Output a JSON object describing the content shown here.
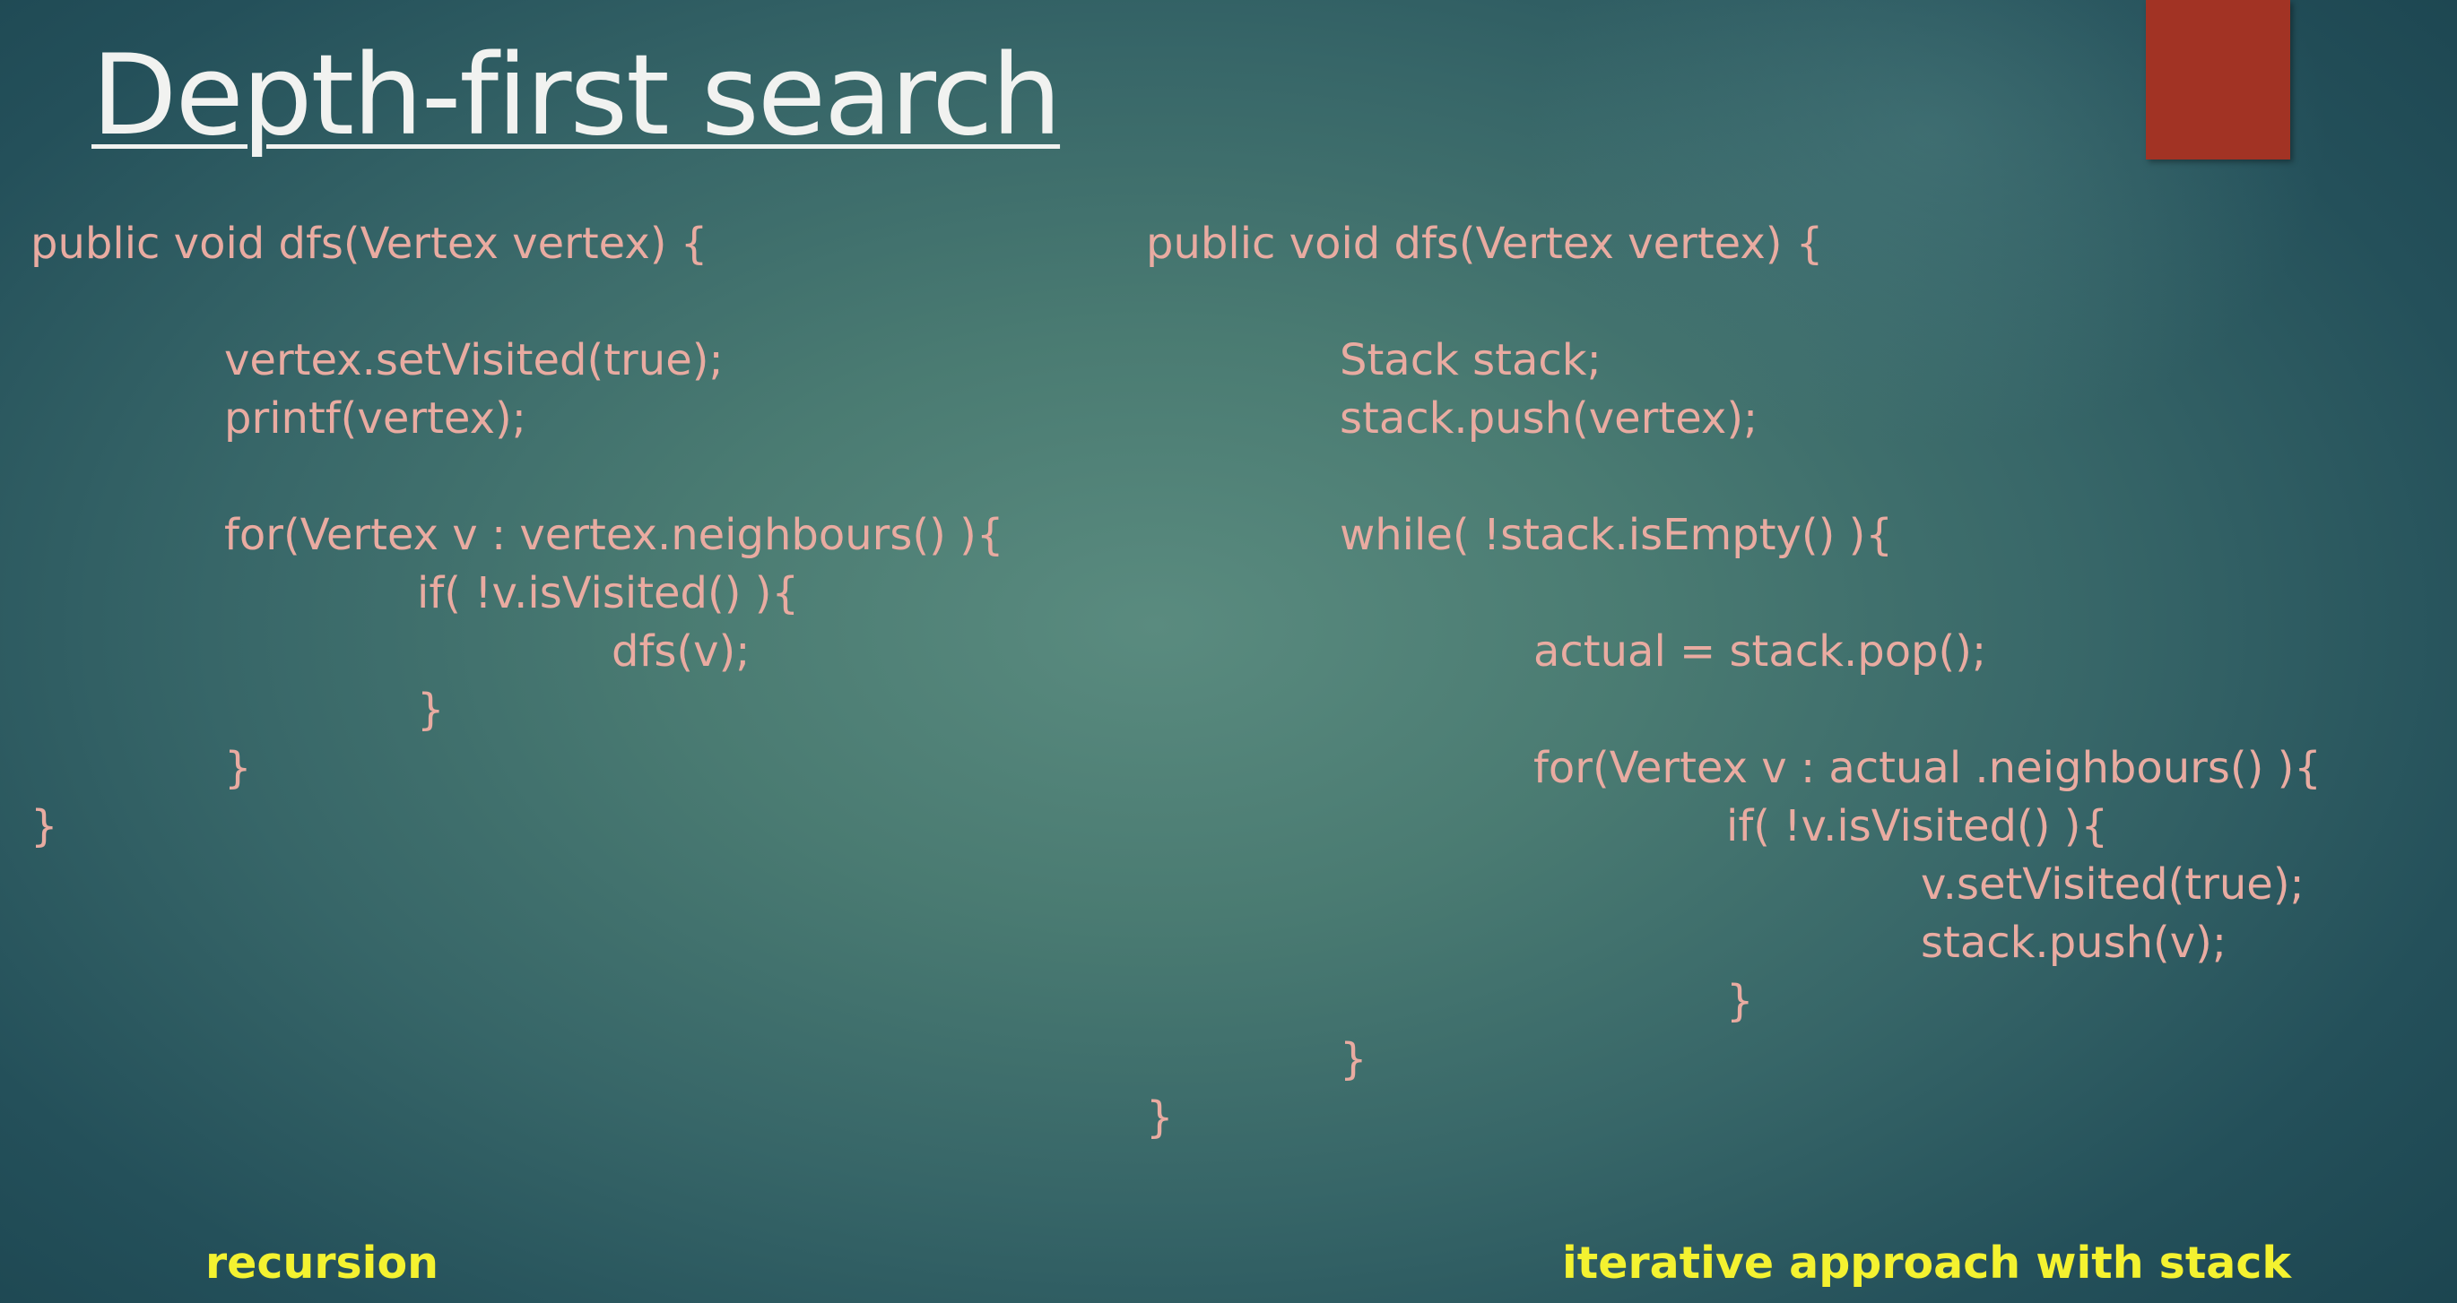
{
  "slide": {
    "title": "Depth-first search",
    "accent_color": "#a23324",
    "code_color": "#e9aba1",
    "caption_color": "#f4f230"
  },
  "left_code": {
    "lines": [
      "public void dfs(Vertex vertex) {",
      "vertex.setVisited(true);",
      "printf(vertex);",
      "for(Vertex v : vertex.neighbours() ){",
      "if( !v.isVisited() ){",
      "dfs(v);",
      "}",
      "}",
      "}"
    ],
    "caption": "recursion"
  },
  "right_code": {
    "lines": [
      "public void dfs(Vertex vertex) {",
      "Stack stack;",
      "stack.push(vertex);",
      "while( !stack.isEmpty() ){",
      "actual = stack.pop();",
      "for(Vertex v : actual .neighbours() ){",
      "if( !v.isVisited() ){",
      "v.setVisited(true);",
      "stack.push(v);",
      "}",
      "}",
      "}"
    ],
    "caption": "iterative approach with stack"
  }
}
